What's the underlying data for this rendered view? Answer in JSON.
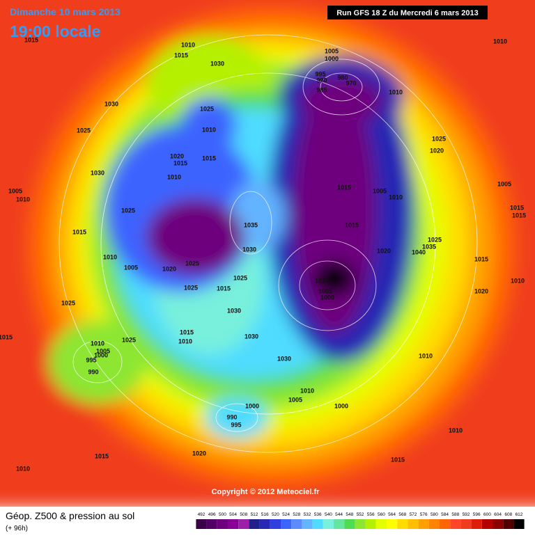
{
  "header": {
    "date": "Dimanche 10 mars 2013",
    "time": "19:00 locale",
    "run": "Run GFS 18 Z du Mercredi 6 mars 2013"
  },
  "isobar_labels": [
    1015,
    1010,
    1015,
    1030,
    1005,
    1000,
    995,
    990,
    980,
    985,
    970,
    1010,
    1030,
    1025,
    1010,
    1025,
    1010,
    1025,
    1020,
    1020,
    1015,
    1015,
    1030,
    1010,
    1005,
    1010,
    1015,
    1005,
    1010,
    1005,
    1025,
    1015,
    1015,
    1035,
    1015,
    1015,
    1025,
    1035,
    1020,
    1040,
    1030,
    1010,
    1005,
    1020,
    1025,
    1015,
    1025,
    1010,
    1005,
    1000,
    1025,
    1015,
    1010,
    1020,
    1025,
    1030,
    1015,
    1010,
    1030,
    1025,
    1015,
    1010,
    1005,
    1000,
    995,
    990,
    1030,
    1010,
    1010,
    1005,
    1000,
    1000,
    990,
    995,
    1010,
    1015,
    1020,
    1015,
    1010
  ],
  "copyright": "Copyright © 2012 Meteociel.fr",
  "legend": {
    "title": "Géop. Z500 & pression au sol",
    "lead_time": "(+ 96h)",
    "levels": [
      492,
      496,
      500,
      504,
      508,
      512,
      516,
      520,
      524,
      528,
      532,
      536,
      540,
      544,
      548,
      552,
      556,
      560,
      564,
      568,
      572,
      576,
      580,
      584,
      588,
      592,
      596,
      600,
      604,
      608,
      612
    ],
    "colors": [
      "#3a0048",
      "#520064",
      "#6e007e",
      "#8a0096",
      "#9a20a8",
      "#20208c",
      "#2828b4",
      "#3040dc",
      "#3c64ff",
      "#5a8cff",
      "#64b4ff",
      "#50dcff",
      "#78f0dc",
      "#64e6a0",
      "#50dc50",
      "#8ce632",
      "#b4f000",
      "#e6ff00",
      "#ffff00",
      "#ffdc00",
      "#ffbe00",
      "#ffa000",
      "#ff8200",
      "#ff6400",
      "#ff4628",
      "#f03c1e",
      "#dc1e0a",
      "#b40000",
      "#8c0000",
      "#500000",
      "#000000"
    ]
  }
}
